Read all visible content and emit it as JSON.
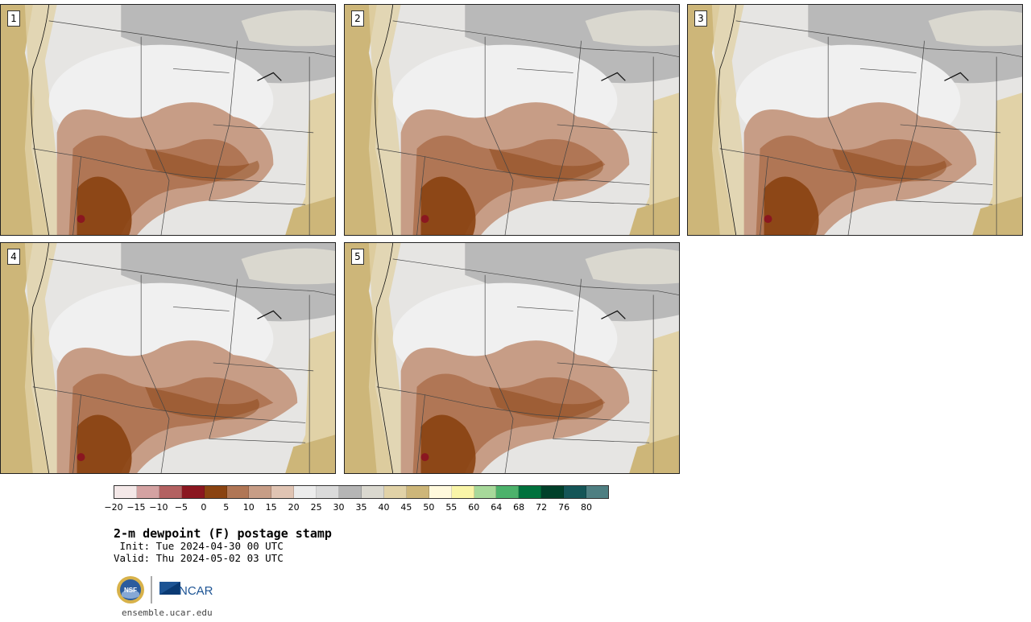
{
  "panels": [
    {
      "label": "1"
    },
    {
      "label": "2"
    },
    {
      "label": "3"
    },
    {
      "label": "4"
    },
    {
      "label": "5"
    }
  ],
  "colorbar": {
    "colors": [
      "#f4e8e8",
      "#d4a2a2",
      "#b36161",
      "#8b1720",
      "#8a4311",
      "#b07655",
      "#c79d86",
      "#e0c4b3",
      "#ececec",
      "#dadada",
      "#b5b5b5",
      "#dad8cf",
      "#e1d2a7",
      "#cdb679",
      "#fff9dc",
      "#f9f5a8",
      "#a7d99a",
      "#4cb26b",
      "#00713d",
      "#00402a",
      "#145557",
      "#4e7f82"
    ],
    "tick_labels": [
      "−20",
      "−15",
      "−10",
      "−5",
      "0",
      "5",
      "10",
      "15",
      "20",
      "25",
      "30",
      "35",
      "40",
      "45",
      "50",
      "55",
      "60",
      "64",
      "68",
      "72",
      "76",
      "80"
    ]
  },
  "title": "2-m dewpoint (F) postage stamp",
  "init_line": " Init: Tue 2024-04-30 00 UTC",
  "valid_line": "Valid: Thu 2024-05-02 03 UTC",
  "logo": {
    "nsf_text": "NSF",
    "ncar_text": "NCAR"
  },
  "site": "ensemble.ucar.edu"
}
